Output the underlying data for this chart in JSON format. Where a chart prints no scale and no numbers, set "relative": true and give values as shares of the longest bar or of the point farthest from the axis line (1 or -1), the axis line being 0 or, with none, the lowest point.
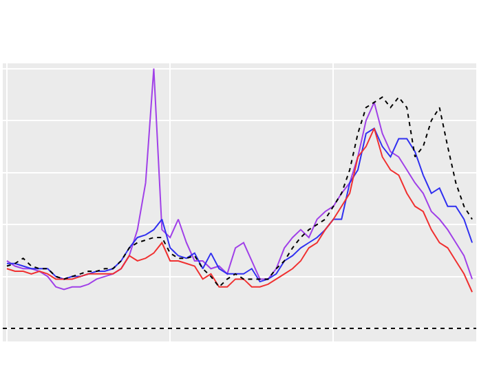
{
  "chart_data": {
    "type": "line",
    "relative": true,
    "grid": true,
    "marker": "none",
    "categories": [
      null,
      null,
      null,
      null,
      null,
      null,
      null,
      null,
      null,
      null,
      null,
      null,
      null,
      null,
      null,
      null,
      null,
      null,
      null,
      null,
      null,
      null,
      null,
      null,
      null,
      null,
      null,
      null,
      null,
      null,
      null,
      null,
      null,
      null,
      null,
      null,
      null,
      null,
      null,
      null,
      null,
      null,
      null,
      null,
      null,
      null,
      null,
      null,
      null,
      null,
      null,
      null,
      null,
      null,
      null,
      null,
      null,
      null
    ],
    "series": [
      {
        "color": "#a040e8",
        "line_style": "solid",
        "values": [
          0.26,
          0.24,
          0.23,
          0.23,
          0.22,
          0.2,
          0.16,
          0.15,
          0.16,
          0.16,
          0.17,
          0.19,
          0.2,
          0.21,
          0.23,
          0.28,
          0.38,
          0.56,
          1.0,
          0.38,
          0.35,
          0.42,
          0.33,
          0.26,
          0.26,
          0.23,
          0.24,
          0.21,
          0.31,
          0.33,
          0.26,
          0.19,
          0.19,
          0.23,
          0.31,
          0.35,
          0.38,
          0.35,
          0.42,
          0.45,
          0.47,
          0.52,
          0.56,
          0.66,
          0.8,
          0.87,
          0.75,
          0.68,
          0.66,
          0.61,
          0.56,
          0.52,
          0.45,
          0.42,
          0.38,
          0.33,
          0.28,
          0.19
        ]
      },
      {
        "color": "#3030f0",
        "line_style": "solid",
        "values": [
          0.25,
          0.25,
          0.24,
          0.23,
          0.23,
          0.23,
          0.2,
          0.19,
          0.2,
          0.2,
          0.21,
          0.22,
          0.22,
          0.23,
          0.26,
          0.31,
          0.35,
          0.36,
          0.38,
          0.42,
          0.31,
          0.28,
          0.27,
          0.29,
          0.23,
          0.29,
          0.23,
          0.21,
          0.21,
          0.21,
          0.23,
          0.18,
          0.19,
          0.21,
          0.26,
          0.28,
          0.31,
          0.33,
          0.35,
          0.38,
          0.42,
          0.42,
          0.56,
          0.61,
          0.75,
          0.77,
          0.7,
          0.66,
          0.73,
          0.73,
          0.68,
          0.59,
          0.52,
          0.54,
          0.47,
          0.47,
          0.42,
          0.33
        ]
      },
      {
        "color": "#f03030",
        "line_style": "solid",
        "values": [
          0.23,
          0.22,
          0.22,
          0.21,
          0.22,
          0.21,
          0.19,
          0.19,
          0.19,
          0.2,
          0.21,
          0.21,
          0.21,
          0.21,
          0.23,
          0.28,
          0.26,
          0.27,
          0.29,
          0.33,
          0.26,
          0.26,
          0.25,
          0.24,
          0.19,
          0.21,
          0.16,
          0.16,
          0.19,
          0.19,
          0.16,
          0.16,
          0.17,
          0.19,
          0.21,
          0.23,
          0.26,
          0.31,
          0.33,
          0.38,
          0.42,
          0.47,
          0.52,
          0.66,
          0.7,
          0.77,
          0.66,
          0.61,
          0.59,
          0.52,
          0.47,
          0.45,
          0.38,
          0.33,
          0.31,
          0.26,
          0.21,
          0.14
        ]
      },
      {
        "color": "#000000",
        "line_style": "dotted",
        "values": [
          0.24,
          0.25,
          0.27,
          0.24,
          0.23,
          0.23,
          0.2,
          0.19,
          0.2,
          0.21,
          0.22,
          0.22,
          0.23,
          0.23,
          0.26,
          0.31,
          0.33,
          0.34,
          0.35,
          0.35,
          0.29,
          0.27,
          0.27,
          0.28,
          0.23,
          0.2,
          0.16,
          0.19,
          0.21,
          0.19,
          0.19,
          0.19,
          0.19,
          0.23,
          0.26,
          0.31,
          0.35,
          0.38,
          0.4,
          0.42,
          0.47,
          0.52,
          0.61,
          0.75,
          0.85,
          0.87,
          0.89,
          0.85,
          0.89,
          0.85,
          0.66,
          0.7,
          0.8,
          0.85,
          0.7,
          0.56,
          0.47,
          0.42
        ]
      }
    ],
    "ref_lines": [
      {
        "axis": "y",
        "value": 0,
        "color": "#000000",
        "line_style": "dotted"
      }
    ]
  }
}
